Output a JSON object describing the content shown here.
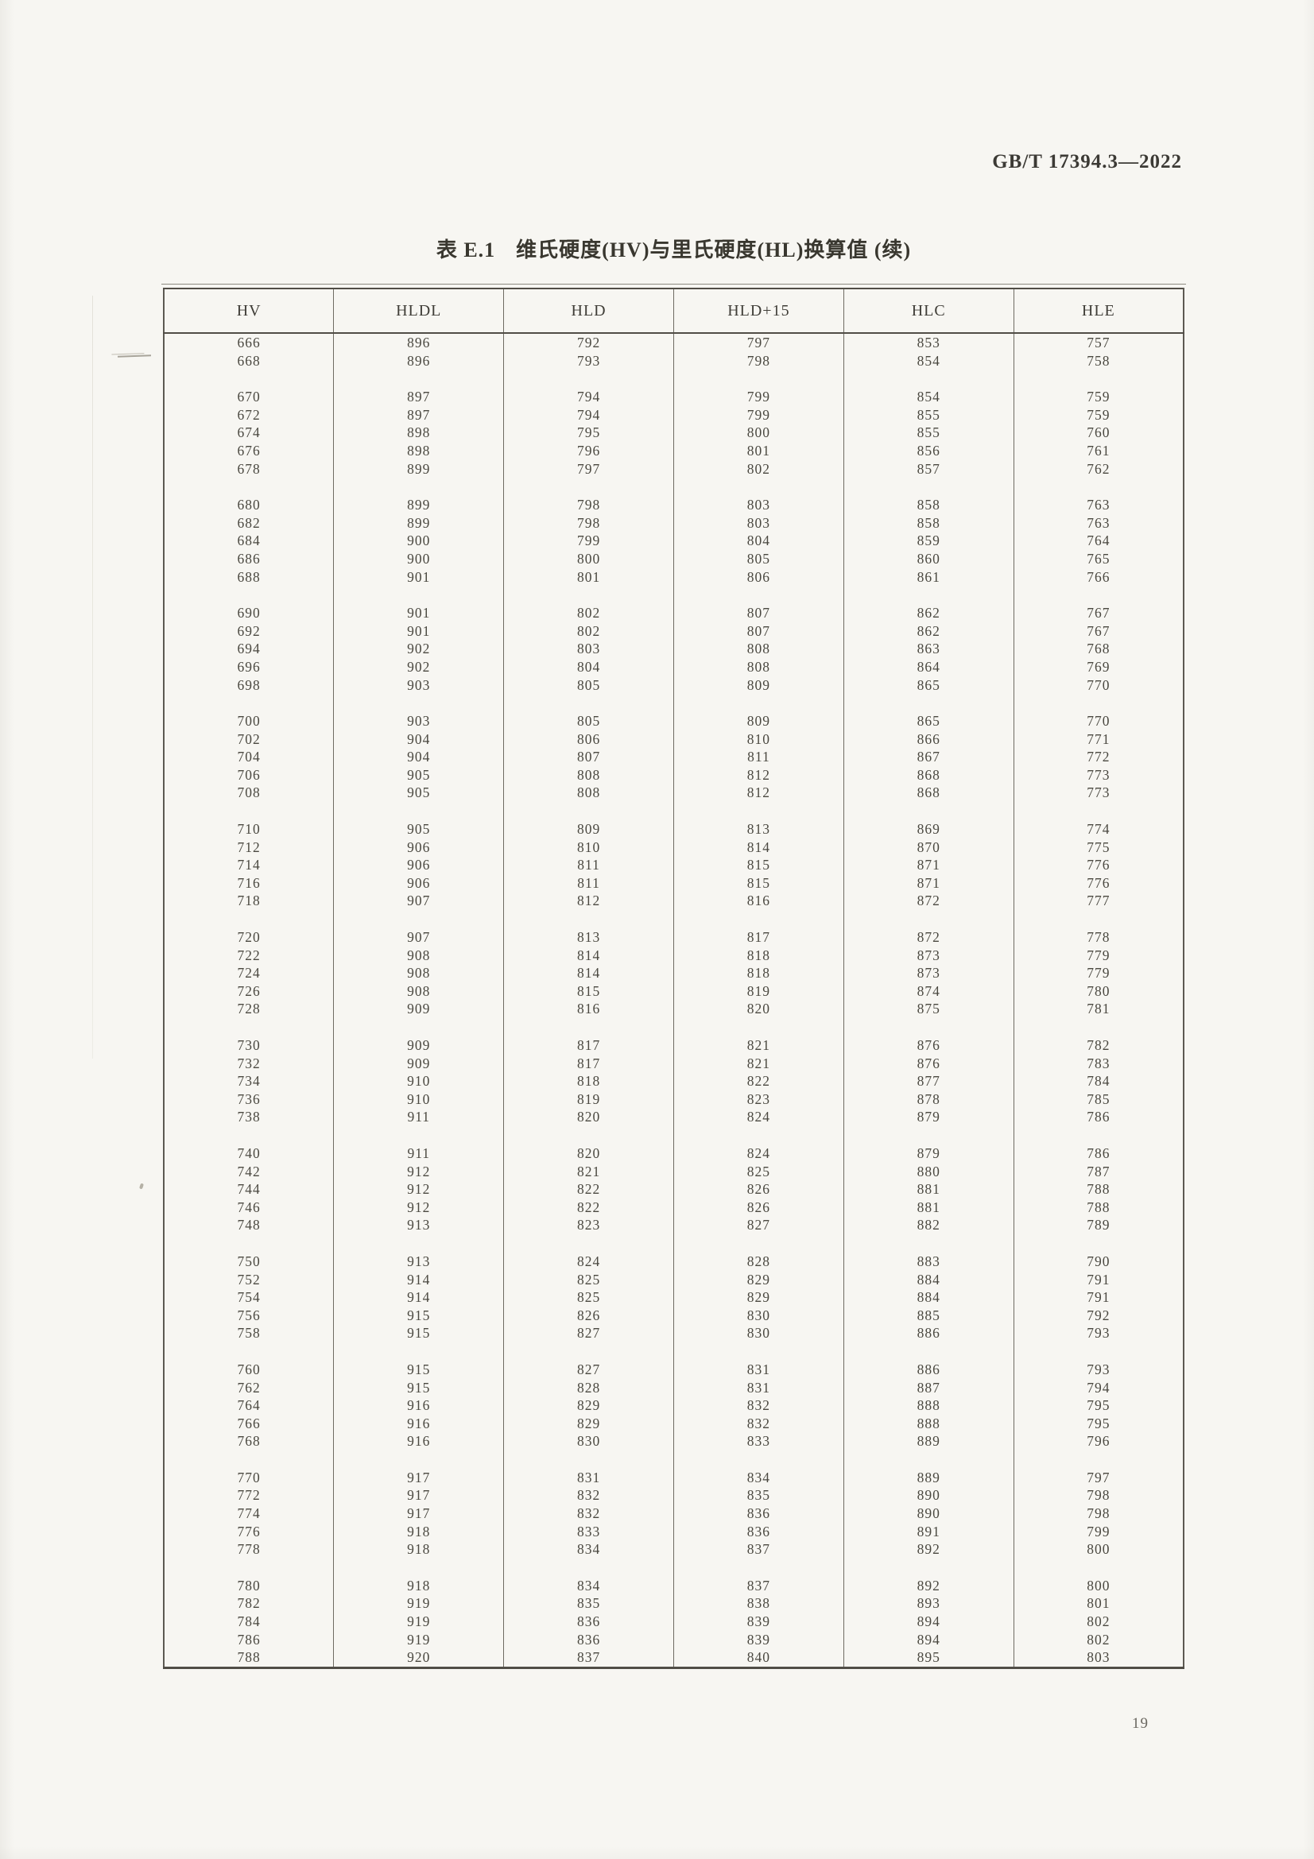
{
  "document": {
    "standard_number": "GB/T 17394.3—2022",
    "caption_label": "表 E.1",
    "caption_text": "维氏硬度(HV)与里氏硬度(HL)换算值 (续)",
    "page_number": "19"
  },
  "table": {
    "columns": [
      "HV",
      "HLDL",
      "HLD",
      "HLD+15",
      "HLC",
      "HLE"
    ],
    "row_groups": [
      [
        [
          666,
          896,
          792,
          797,
          853,
          757
        ],
        [
          668,
          896,
          793,
          798,
          854,
          758
        ]
      ],
      [
        [
          670,
          897,
          794,
          799,
          854,
          759
        ],
        [
          672,
          897,
          794,
          799,
          855,
          759
        ],
        [
          674,
          898,
          795,
          800,
          855,
          760
        ],
        [
          676,
          898,
          796,
          801,
          856,
          761
        ],
        [
          678,
          899,
          797,
          802,
          857,
          762
        ]
      ],
      [
        [
          680,
          899,
          798,
          803,
          858,
          763
        ],
        [
          682,
          899,
          798,
          803,
          858,
          763
        ],
        [
          684,
          900,
          799,
          804,
          859,
          764
        ],
        [
          686,
          900,
          800,
          805,
          860,
          765
        ],
        [
          688,
          901,
          801,
          806,
          861,
          766
        ]
      ],
      [
        [
          690,
          901,
          802,
          807,
          862,
          767
        ],
        [
          692,
          901,
          802,
          807,
          862,
          767
        ],
        [
          694,
          902,
          803,
          808,
          863,
          768
        ],
        [
          696,
          902,
          804,
          808,
          864,
          769
        ],
        [
          698,
          903,
          805,
          809,
          865,
          770
        ]
      ],
      [
        [
          700,
          903,
          805,
          809,
          865,
          770
        ],
        [
          702,
          904,
          806,
          810,
          866,
          771
        ],
        [
          704,
          904,
          807,
          811,
          867,
          772
        ],
        [
          706,
          905,
          808,
          812,
          868,
          773
        ],
        [
          708,
          905,
          808,
          812,
          868,
          773
        ]
      ],
      [
        [
          710,
          905,
          809,
          813,
          869,
          774
        ],
        [
          712,
          906,
          810,
          814,
          870,
          775
        ],
        [
          714,
          906,
          811,
          815,
          871,
          776
        ],
        [
          716,
          906,
          811,
          815,
          871,
          776
        ],
        [
          718,
          907,
          812,
          816,
          872,
          777
        ]
      ],
      [
        [
          720,
          907,
          813,
          817,
          872,
          778
        ],
        [
          722,
          908,
          814,
          818,
          873,
          779
        ],
        [
          724,
          908,
          814,
          818,
          873,
          779
        ],
        [
          726,
          908,
          815,
          819,
          874,
          780
        ],
        [
          728,
          909,
          816,
          820,
          875,
          781
        ]
      ],
      [
        [
          730,
          909,
          817,
          821,
          876,
          782
        ],
        [
          732,
          909,
          817,
          821,
          876,
          783
        ],
        [
          734,
          910,
          818,
          822,
          877,
          784
        ],
        [
          736,
          910,
          819,
          823,
          878,
          785
        ],
        [
          738,
          911,
          820,
          824,
          879,
          786
        ]
      ],
      [
        [
          740,
          911,
          820,
          824,
          879,
          786
        ],
        [
          742,
          912,
          821,
          825,
          880,
          787
        ],
        [
          744,
          912,
          822,
          826,
          881,
          788
        ],
        [
          746,
          912,
          822,
          826,
          881,
          788
        ],
        [
          748,
          913,
          823,
          827,
          882,
          789
        ]
      ],
      [
        [
          750,
          913,
          824,
          828,
          883,
          790
        ],
        [
          752,
          914,
          825,
          829,
          884,
          791
        ],
        [
          754,
          914,
          825,
          829,
          884,
          791
        ],
        [
          756,
          915,
          826,
          830,
          885,
          792
        ],
        [
          758,
          915,
          827,
          830,
          886,
          793
        ]
      ],
      [
        [
          760,
          915,
          827,
          831,
          886,
          793
        ],
        [
          762,
          915,
          828,
          831,
          887,
          794
        ],
        [
          764,
          916,
          829,
          832,
          888,
          795
        ],
        [
          766,
          916,
          829,
          832,
          888,
          795
        ],
        [
          768,
          916,
          830,
          833,
          889,
          796
        ]
      ],
      [
        [
          770,
          917,
          831,
          834,
          889,
          797
        ],
        [
          772,
          917,
          832,
          835,
          890,
          798
        ],
        [
          774,
          917,
          832,
          836,
          890,
          798
        ],
        [
          776,
          918,
          833,
          836,
          891,
          799
        ],
        [
          778,
          918,
          834,
          837,
          892,
          800
        ]
      ],
      [
        [
          780,
          918,
          834,
          837,
          892,
          800
        ],
        [
          782,
          919,
          835,
          838,
          893,
          801
        ],
        [
          784,
          919,
          836,
          839,
          894,
          802
        ],
        [
          786,
          919,
          836,
          839,
          894,
          802
        ],
        [
          788,
          920,
          837,
          840,
          895,
          803
        ]
      ]
    ]
  }
}
